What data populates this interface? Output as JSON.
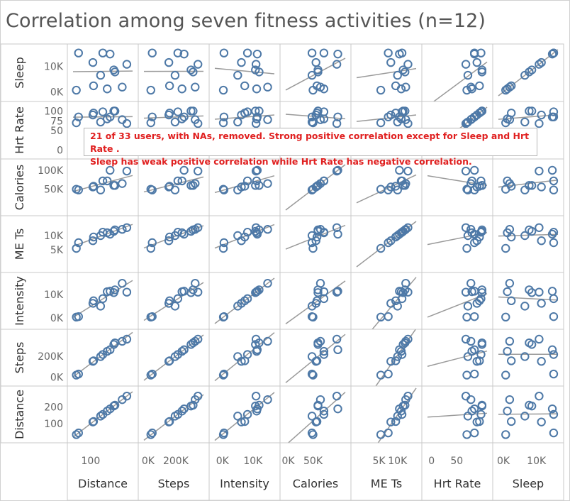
{
  "title": "Correlation among seven fitness activities (n=12)",
  "annotation": {
    "line1": "21 of 33 users, with NAs, removed. Strong positive correlation except for Sleep and Hrt Rate .",
    "line2": "Sleep has weak positive correlation while Hrt Rate has negative correlation."
  },
  "colors": {
    "marker": "#4e79a7",
    "trend_line": "#9a9a9a",
    "annotation_text": "#e02020",
    "grid": "#c8c8c8"
  },
  "chart_data": {
    "type": "scatter",
    "title": "Correlation among seven fitness activities (n=12)",
    "grid": true,
    "trend_lines": true,
    "variables": [
      "Distance",
      "Steps",
      "Intensity",
      "Calories",
      "ME Ts",
      "Hrt Rate",
      "Sleep"
    ],
    "row_order": [
      "Sleep",
      "Hrt Rate",
      "Calories",
      "ME Ts",
      "Intensity",
      "Steps",
      "Distance"
    ],
    "x_ticks": {
      "Distance": [
        {
          "v": 100,
          "label": "100"
        }
      ],
      "Steps": [
        {
          "v": 0,
          "label": "0K"
        },
        {
          "v": 200000,
          "label": "200K"
        }
      ],
      "Intensity": [
        {
          "v": 0,
          "label": "0K"
        },
        {
          "v": 10000,
          "label": "10K"
        }
      ],
      "Calories": [
        {
          "v": 0,
          "label": "0K"
        },
        {
          "v": 50000,
          "label": "50K"
        }
      ],
      "ME Ts": [
        {
          "v": 5000,
          "label": "5K"
        },
        {
          "v": 10000,
          "label": "10K"
        }
      ],
      "Hrt Rate": [
        {
          "v": 0,
          "label": "0"
        },
        {
          "v": 50,
          "label": "50"
        }
      ],
      "Sleep": [
        {
          "v": 0,
          "label": "0K"
        },
        {
          "v": 10000,
          "label": "10K"
        }
      ]
    },
    "y_ticks": {
      "Sleep": [
        {
          "v": 0,
          "label": "0K"
        },
        {
          "v": 10000,
          "label": "10K"
        }
      ],
      "Hrt Rate": [
        {
          "v": 0,
          "label": "0"
        },
        {
          "v": 50,
          "label": "50"
        },
        {
          "v": 75,
          "label": "75"
        },
        {
          "v": 100,
          "label": "100"
        }
      ],
      "Calories": [
        {
          "v": 50000,
          "label": "50K"
        },
        {
          "v": 100000,
          "label": "100K"
        }
      ],
      "ME Ts": [
        {
          "v": 5000,
          "label": "5K"
        },
        {
          "v": 10000,
          "label": "10K"
        }
      ],
      "Intensity": [
        {
          "v": 0,
          "label": "0K"
        },
        {
          "v": 10000,
          "label": "10K"
        }
      ],
      "Steps": [
        {
          "v": 0,
          "label": "0K"
        },
        {
          "v": 200000,
          "label": "200K"
        }
      ],
      "Distance": [
        {
          "v": 100,
          "label": "100"
        },
        {
          "v": 200,
          "label": "200"
        }
      ]
    },
    "ranges": {
      "Distance": [
        20,
        290
      ],
      "Steps": [
        -30000,
        400000
      ],
      "Intensity": [
        -2500,
        17000
      ],
      "Calories": [
        -5000,
        115000
      ],
      "ME Ts": [
        -1000,
        15000
      ],
      "Hrt Rate": [
        -8,
        110
      ],
      "Sleep": [
        -1500,
        16500
      ]
    },
    "points": {
      "Distance": [
        35,
        45,
        110,
        113,
        145,
        155,
        175,
        188,
        205,
        210,
        243,
        264
      ],
      "Steps": [
        20000,
        30000,
        150000,
        155000,
        195000,
        215000,
        245000,
        260000,
        310000,
        325000,
        340000,
        360000
      ],
      "Intensity": [
        300,
        500,
        6200,
        7300,
        5000,
        8200,
        11200,
        11400,
        10800,
        12000,
        14800,
        11000
      ],
      "Calories": [
        50000,
        48000,
        56000,
        58000,
        48000,
        72000,
        72000,
        100000,
        60000,
        60000,
        65000,
        98000
      ],
      "ME Ts": [
        5500,
        7500,
        8200,
        9500,
        10000,
        11200,
        11000,
        10500,
        11500,
        12000,
        12200,
        12800
      ],
      "Hrt Rate": [
        70,
        85,
        90,
        95,
        72,
        98,
        80,
        85,
        100,
        100,
        78,
        68
      ],
      "Sleep": [
        700,
        15200,
        11500,
        2400,
        6500,
        15200,
        1200,
        14800,
        8600,
        7800,
        1900,
        10800
      ]
    }
  }
}
